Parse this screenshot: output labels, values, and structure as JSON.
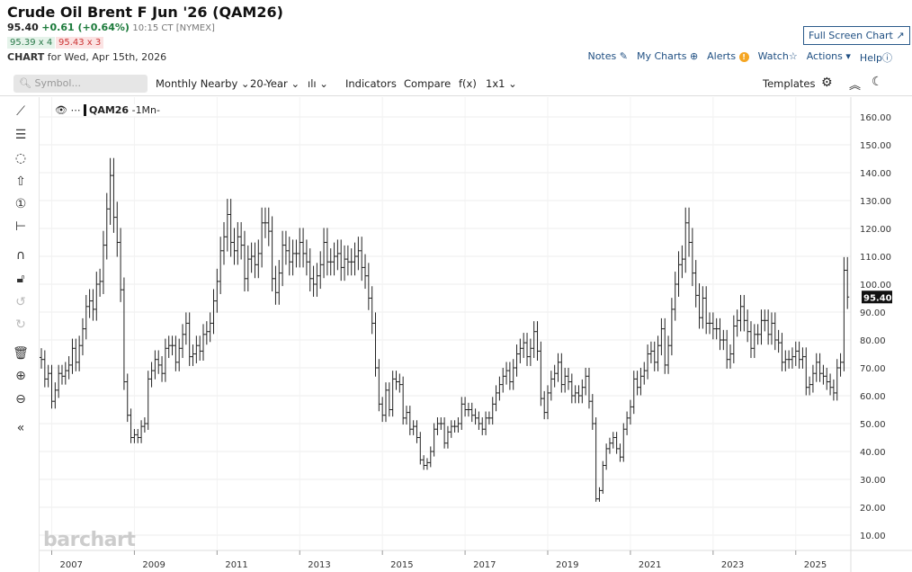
{
  "header": {
    "title": "Crude Oil Brent F Jun '26 (QAM26)",
    "last": "95.40",
    "change": "+0.61 (+0.64%)",
    "time": "10:15 CT [NYMEX]",
    "bid": "95.39 x 4",
    "ask": "95.43 x 3",
    "chart_for_label": "CHART",
    "chart_for_date": "for Wed, Apr 15th, 2026",
    "full_screen": "Full Screen Chart ↗"
  },
  "links": {
    "notes": "Notes",
    "my_charts": "My Charts",
    "alerts": "Alerts",
    "watch": "Watch",
    "actions": "Actions",
    "help": "Help"
  },
  "toolbar": {
    "symbol_placeholder": "Symbol...",
    "period": "Monthly Nearby",
    "range": "20-Year",
    "indicators": "Indicators",
    "compare": "Compare",
    "fx": "f(x)",
    "layout": "1x1",
    "templates": "Templates"
  },
  "legend": {
    "symbol": "QAM26",
    "interval": "-1Mn-"
  },
  "watermark": "barchart",
  "chart_data": {
    "type": "ohlc",
    "symbol": "QAM26",
    "start": "2006-10",
    "interval": "monthly",
    "closes": [
      73,
      66,
      68,
      58,
      62,
      68,
      67,
      69,
      71,
      77,
      72,
      78,
      84,
      92,
      94,
      91,
      100,
      101,
      114,
      127,
      139,
      124,
      115,
      98,
      65,
      53,
      45,
      46,
      45,
      49,
      50,
      66,
      69,
      73,
      71,
      68,
      77,
      78,
      78,
      72,
      77,
      82,
      86,
      74,
      75,
      78,
      76,
      82,
      83,
      86,
      94,
      101,
      112,
      117,
      125,
      115,
      112,
      117,
      114,
      102,
      109,
      110,
      107,
      111,
      122,
      122,
      119,
      102,
      97,
      104,
      114,
      112,
      108,
      111,
      111,
      115,
      111,
      108,
      102,
      100,
      103,
      107,
      115,
      108,
      108,
      110,
      111,
      106,
      109,
      108,
      108,
      110,
      112,
      106,
      103,
      95,
      86,
      70,
      57,
      53,
      62,
      55,
      66,
      65,
      64,
      52,
      54,
      48,
      49,
      45,
      37,
      35,
      36,
      40,
      48,
      50,
      50,
      43,
      47,
      49,
      49,
      50,
      57,
      55,
      55,
      53,
      52,
      50,
      48,
      52,
      52,
      57,
      61,
      64,
      67,
      69,
      65,
      70,
      75,
      77,
      79,
      74,
      77,
      83,
      76,
      59,
      54,
      61,
      66,
      68,
      72,
      64,
      67,
      65,
      60,
      61,
      60,
      63,
      67,
      58,
      50,
      23,
      26,
      35,
      41,
      43,
      45,
      41,
      38,
      48,
      52,
      56,
      66,
      63,
      67,
      69,
      75,
      76,
      72,
      78,
      84,
      71,
      78,
      91,
      100,
      107,
      109,
      122,
      115,
      104,
      96,
      88,
      95,
      86,
      86,
      84,
      84,
      80,
      80,
      73,
      75,
      85,
      87,
      92,
      87,
      83,
      77,
      82,
      82,
      87,
      87,
      82,
      86,
      80,
      79,
      72,
      73,
      73,
      74,
      76,
      73,
      74,
      63,
      64,
      68,
      72,
      68,
      67,
      65,
      63,
      61,
      70,
      72,
      105,
      95.4
    ],
    "x_ticks": [
      "2007",
      "2009",
      "2011",
      "2013",
      "2015",
      "2017",
      "2019",
      "2021",
      "2023",
      "2025"
    ],
    "y_ticks": [
      "160.00",
      "150.00",
      "140.00",
      "130.00",
      "120.00",
      "110.00",
      "100.00",
      "90.00",
      "80.00",
      "70.00",
      "60.00",
      "50.00",
      "40.00",
      "30.00",
      "20.00",
      "10.00"
    ],
    "ylim": [
      10,
      160
    ],
    "last_price_label": "95.40"
  }
}
